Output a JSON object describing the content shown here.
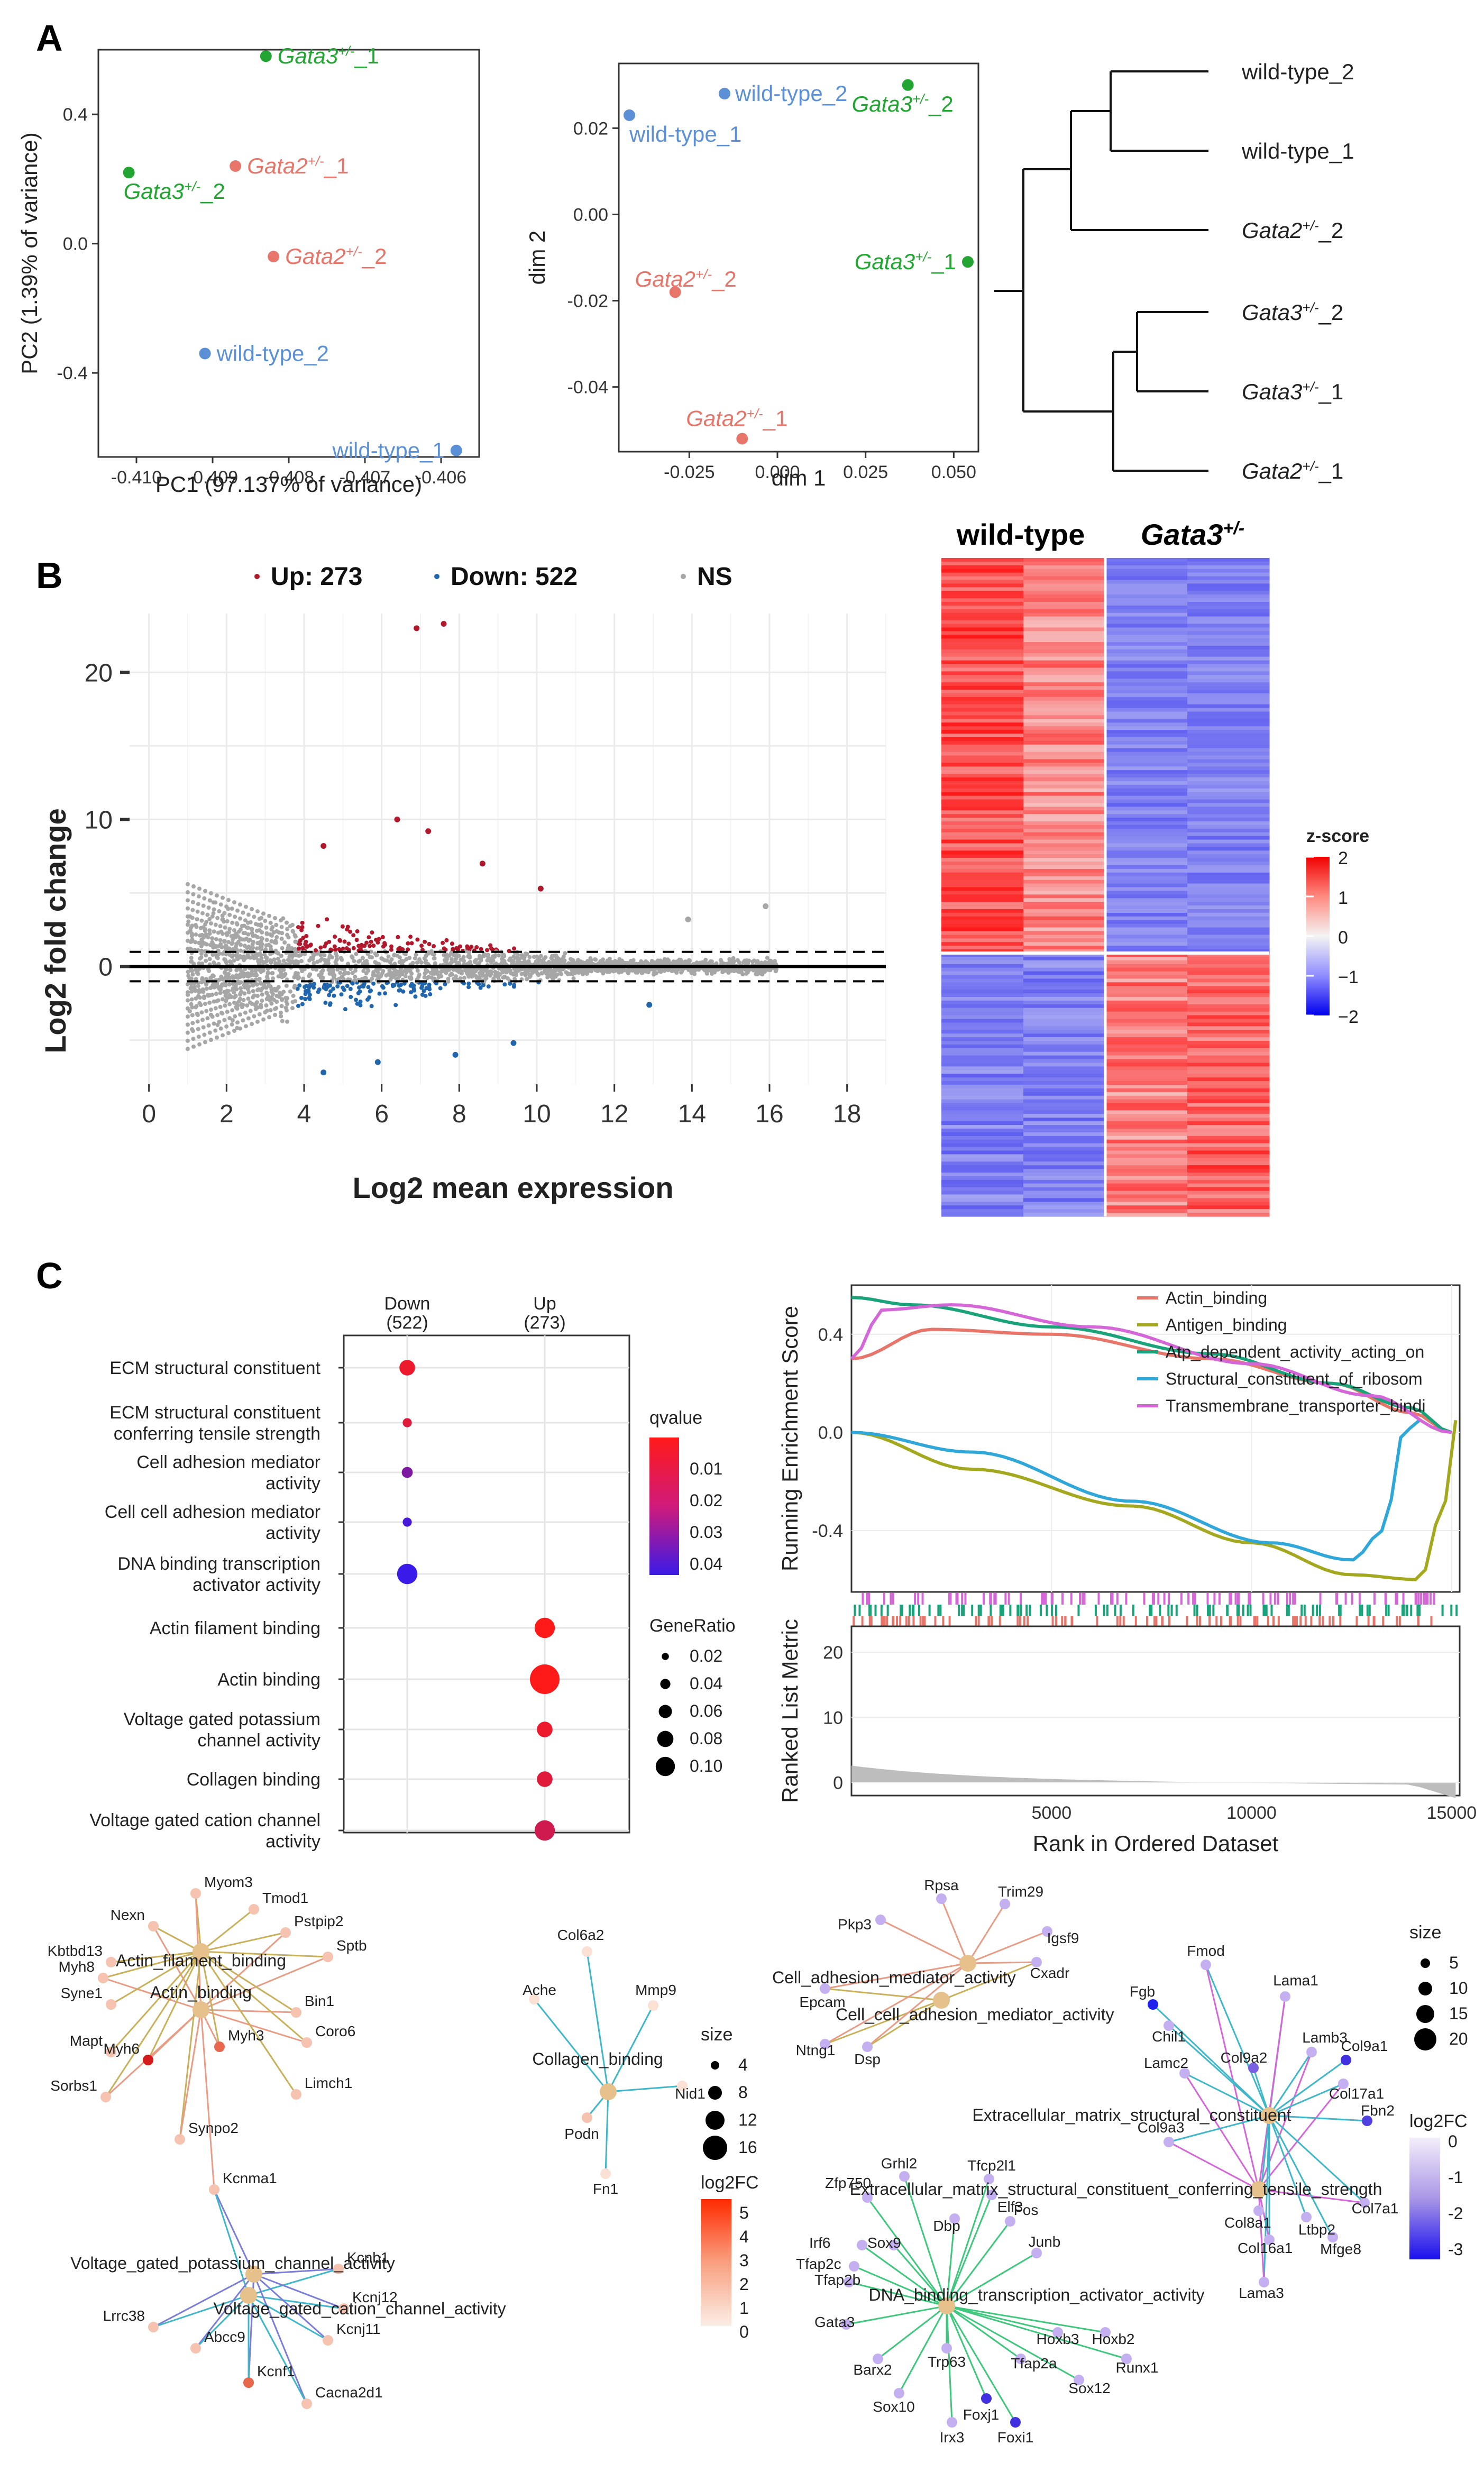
{
  "panel_labels": {
    "a": "A",
    "b": "B",
    "c": "C"
  },
  "colors": {
    "wildtype": "#5b8fd6",
    "gata3": "#22a532",
    "gata2": "#e8756a",
    "up": "#b2182b",
    "down": "#2166ac",
    "ns": "#a6a6a6"
  },
  "chart_data": [
    {
      "id": "pca",
      "type": "scatter",
      "xlabel": "PC1 (97.137% of variance)",
      "ylabel": "PC2 (1.39% of variance)",
      "xlim": [
        -0.4105,
        -0.4055
      ],
      "ylim": [
        -0.66,
        0.6
      ],
      "xticks": [
        "-0.410",
        "-0.409",
        "-0.408",
        "-0.407",
        "-0.406"
      ],
      "xtick_values": [
        -0.41,
        -0.409,
        -0.408,
        -0.407,
        -0.406
      ],
      "yticks": [
        "0.4",
        "0.0",
        "-0.4"
      ],
      "ytick_values": [
        0.4,
        0.0,
        -0.4
      ],
      "points": [
        {
          "label": "Gata3+/-_1",
          "group": "gata3",
          "x": -0.4083,
          "y": 0.58
        },
        {
          "label": "Gata3+/-_2",
          "group": "gata3",
          "x": -0.4101,
          "y": 0.22
        },
        {
          "label": "Gata2+/-_1",
          "group": "gata2",
          "x": -0.4087,
          "y": 0.24
        },
        {
          "label": "Gata2+/-_2",
          "group": "gata2",
          "x": -0.4082,
          "y": -0.04
        },
        {
          "label": "wild-type_2",
          "group": "wildtype",
          "x": -0.4091,
          "y": -0.34
        },
        {
          "label": "wild-type_1",
          "group": "wildtype",
          "x": -0.4058,
          "y": -0.64
        }
      ]
    },
    {
      "id": "mds",
      "type": "scatter",
      "xlabel": "dim 1",
      "ylabel": "dim 2",
      "xlim": [
        -0.045,
        0.057
      ],
      "ylim": [
        -0.055,
        0.035
      ],
      "xticks": [
        "-0.025",
        "0.000",
        "0.025",
        "0.050"
      ],
      "xtick_values": [
        -0.025,
        0.0,
        0.025,
        0.05
      ],
      "yticks": [
        "0.02",
        "0.00",
        "-0.02",
        "-0.04"
      ],
      "ytick_values": [
        0.02,
        0.0,
        -0.02,
        -0.04
      ],
      "points": [
        {
          "label": "wild-type_2",
          "group": "wildtype",
          "x": -0.015,
          "y": 0.028
        },
        {
          "label": "wild-type_1",
          "group": "wildtype",
          "x": -0.042,
          "y": 0.023
        },
        {
          "label": "Gata3+/-_2",
          "group": "gata3",
          "x": 0.037,
          "y": 0.03
        },
        {
          "label": "Gata3+/-_1",
          "group": "gata3",
          "x": 0.054,
          "y": -0.011
        },
        {
          "label": "Gata2+/-_2",
          "group": "gata2",
          "x": -0.029,
          "y": -0.018
        },
        {
          "label": "Gata2+/-_1",
          "group": "gata2",
          "x": -0.01,
          "y": -0.052
        }
      ]
    },
    {
      "id": "dendrogram",
      "type": "dendrogram",
      "leaves": [
        "wild-type_2",
        "wild-type_1",
        "Gata2+/-_2",
        "Gata3+/-_2",
        "Gata3+/-_1",
        "Gata2+/-_1"
      ]
    },
    {
      "id": "ma",
      "type": "scatter",
      "xlabel": "Log2 mean expression",
      "ylabel": "Log2 fold change",
      "xlim": [
        -0.5,
        19
      ],
      "ylim": [
        -8,
        24
      ],
      "xticks": [
        "0",
        "2",
        "4",
        "6",
        "8",
        "10",
        "12",
        "14",
        "16",
        "18"
      ],
      "xtick_values": [
        0,
        2,
        4,
        6,
        8,
        10,
        12,
        14,
        16,
        18
      ],
      "yticks": [
        "0",
        "10",
        "20"
      ],
      "ytick_values": [
        0,
        10,
        20
      ],
      "legend": [
        {
          "label": "Up: 273",
          "group": "up"
        },
        {
          "label": "Down: 522",
          "group": "down"
        },
        {
          "label": "NS",
          "group": "ns"
        }
      ],
      "thresholds": [
        1,
        -1
      ],
      "outliers": [
        {
          "x": 6.9,
          "y": 23.0,
          "group": "up"
        },
        {
          "x": 7.6,
          "y": 23.3,
          "group": "up"
        },
        {
          "x": 6.4,
          "y": 10.0,
          "group": "up"
        },
        {
          "x": 7.2,
          "y": 9.2,
          "group": "up"
        },
        {
          "x": 4.5,
          "y": 8.2,
          "group": "up"
        },
        {
          "x": 10.1,
          "y": 5.3,
          "group": "up"
        },
        {
          "x": 8.6,
          "y": 7.0,
          "group": "up"
        },
        {
          "x": 13.9,
          "y": 3.2,
          "group": "ns"
        },
        {
          "x": 15.9,
          "y": 4.1,
          "group": "ns"
        },
        {
          "x": 4.5,
          "y": -7.2,
          "group": "down"
        },
        {
          "x": 5.9,
          "y": -6.5,
          "group": "down"
        },
        {
          "x": 7.9,
          "y": -6.0,
          "group": "down"
        },
        {
          "x": 9.4,
          "y": -5.2,
          "group": "down"
        },
        {
          "x": 12.9,
          "y": -2.6,
          "group": "down"
        }
      ]
    },
    {
      "id": "heatmap",
      "type": "heatmap",
      "group_labels": [
        "wild-type",
        "Gata3+/-"
      ],
      "legend_title": "z-score",
      "scale_ticks": [
        "2",
        "1",
        "0",
        "−1",
        "−2"
      ],
      "scale_values": [
        2,
        1,
        0,
        -1,
        -2
      ],
      "columns": 4,
      "rows_up_fraction": 0.6
    },
    {
      "id": "dotplot",
      "type": "scatter",
      "columns": [
        {
          "name": "Down",
          "n": "(522)"
        },
        {
          "name": "Up",
          "n": "(273)"
        }
      ],
      "terms": [
        {
          "label": [
            "ECM structural constituent"
          ],
          "col": 0,
          "qvalue": 0.005,
          "ratio": 0.04
        },
        {
          "label": [
            "ECM structural constituent",
            "conferring tensile strength"
          ],
          "col": 0,
          "qvalue": 0.008,
          "ratio": 0.012
        },
        {
          "label": [
            "Cell adhesion mediator",
            "activity"
          ],
          "col": 0,
          "qvalue": 0.03,
          "ratio": 0.02
        },
        {
          "label": [
            "Cell cell adhesion mediator",
            "activity"
          ],
          "col": 0,
          "qvalue": 0.042,
          "ratio": 0.012
        },
        {
          "label": [
            "DNA binding transcription",
            "activator activity"
          ],
          "col": 0,
          "qvalue": 0.045,
          "ratio": 0.06
        },
        {
          "label": [
            "Actin filament binding"
          ],
          "col": 1,
          "qvalue": 0.001,
          "ratio": 0.06
        },
        {
          "label": [
            "Actin binding"
          ],
          "col": 1,
          "qvalue": 0.001,
          "ratio": 0.1
        },
        {
          "label": [
            "Voltage gated potassium",
            "channel activity"
          ],
          "col": 1,
          "qvalue": 0.005,
          "ratio": 0.04
        },
        {
          "label": [
            "Collagen binding"
          ],
          "col": 1,
          "qvalue": 0.008,
          "ratio": 0.04
        },
        {
          "label": [
            "Voltage gated cation channel",
            "activity"
          ],
          "col": 1,
          "qvalue": 0.012,
          "ratio": 0.06
        }
      ],
      "qvalue_title": "qvalue",
      "qvalue_ticks": [
        "0.01",
        "0.02",
        "0.03",
        "0.04"
      ],
      "generatio_title": "GeneRatio",
      "generatio_ticks": [
        "0.02",
        "0.04",
        "0.06",
        "0.08",
        "0.10"
      ],
      "generatio_values": [
        0.02,
        0.04,
        0.06,
        0.08,
        0.1
      ]
    },
    {
      "id": "gsea",
      "type": "line",
      "ylabel_top": "Running Enrichment Score",
      "ylabel_bottom": "Ranked List Metric",
      "xlabel": "Rank in Ordered Dataset",
      "xlim": [
        0,
        15200
      ],
      "ylim_top": [
        -0.65,
        0.6
      ],
      "ylim_bottom": [
        -2,
        24
      ],
      "xticks": [
        "5000",
        "10000",
        "15000"
      ],
      "xtick_values": [
        5000,
        10000,
        15000
      ],
      "yticks_top": [
        "0.4",
        "0.0",
        "-0.4"
      ],
      "ytick_values_top": [
        0.4,
        0.0,
        -0.4
      ],
      "yticks_bottom": [
        "20",
        "10",
        "0"
      ],
      "ytick_values_bottom": [
        20,
        10,
        0
      ],
      "series": [
        {
          "name": "Actin_binding",
          "color": "#e8756a",
          "x": [
            0,
            2000,
            5000,
            9000,
            12000,
            14000,
            15000
          ],
          "y": [
            0.3,
            0.42,
            0.4,
            0.3,
            0.2,
            0.08,
            0.0
          ]
        },
        {
          "name": "Antigen_binding",
          "color": "#a3a81e",
          "x": [
            0,
            3000,
            7000,
            10000,
            12500,
            14200,
            14800,
            15100
          ],
          "y": [
            0.0,
            -0.15,
            -0.3,
            -0.45,
            -0.58,
            -0.6,
            -0.3,
            0.05
          ]
        },
        {
          "name": "Atp_dependent_activity_acting_on",
          "color": "#1aa37a",
          "x": [
            0,
            1500,
            5000,
            9000,
            12000,
            14000,
            15000
          ],
          "y": [
            0.55,
            0.52,
            0.43,
            0.32,
            0.2,
            0.1,
            0.0
          ]
        },
        {
          "name": "Structural_constituent_of_ribosom",
          "color": "#2fa7d8",
          "x": [
            0,
            3000,
            7000,
            10500,
            12500,
            13300,
            13800,
            14200
          ],
          "y": [
            0.0,
            -0.08,
            -0.28,
            -0.45,
            -0.52,
            -0.4,
            0.0,
            0.05
          ]
        },
        {
          "name": "Transmembrane_transporter_bindi",
          "color": "#d566d8",
          "x": [
            0,
            800,
            2500,
            6000,
            10000,
            13000,
            15000
          ],
          "y": [
            0.3,
            0.5,
            0.52,
            0.43,
            0.28,
            0.15,
            0.0
          ]
        }
      ]
    }
  ],
  "networks": {
    "left": {
      "hubs": [
        "Actin_filament_binding",
        "Actin_binding",
        "Voltage_gated_potassium_channel_activity",
        "Voltage_gated_cation_channel_activity"
      ],
      "genes": [
        "Myom3",
        "Tmod1",
        "Nexn",
        "Pstpip2",
        "Kbtbd13",
        "Sptb",
        "Myh8",
        "Syne1",
        "Bin1",
        "Coro6",
        "Mapt",
        "Myh6",
        "Myh3",
        "Limch1",
        "Sorbs1",
        "Synpo2",
        "Kcnma1",
        "Kcnb1",
        "Kcnj12",
        "Lrrc38",
        "Kcnj11",
        "Abcc9",
        "Kcnf1",
        "Cacna2d1"
      ]
    },
    "middle": {
      "hubs": [
        "Collagen_binding"
      ],
      "genes": [
        "Col6a2",
        "Ache",
        "Mmp9",
        "Nid1",
        "Podn",
        "Fn1"
      ]
    },
    "right_top": {
      "hubs": [
        "Cell_adhesion_mediator_activity",
        "Cell_cell_adhesion_mediator_activity"
      ],
      "genes": [
        "Rpsa",
        "Trim29",
        "Pkp3",
        "Igsf9",
        "Cxadr",
        "Epcam",
        "Ntng1",
        "Dsp"
      ]
    },
    "right_bottom": {
      "hubs": [
        "Extracellular_matrix_structural_constituent",
        "Extracellular_matrix_structural_constituent_conferring_tensile_strength",
        "DNA_binding_transcription_activator_activity"
      ],
      "genes": [
        "Fmod",
        "Fgb",
        "Lama1",
        "Chil1",
        "Lamb3",
        "Col9a1",
        "Lamc2",
        "Col9a2",
        "Col17a1",
        "Fbn2",
        "Col9a3",
        "Col8a1",
        "Col7a1",
        "Ltbp2",
        "Col16a1",
        "Mfge8",
        "Lama3",
        "Grhl2",
        "Tfcp2l1",
        "Zfp750",
        "Elf3",
        "Dbp",
        "Fos",
        "Irf6",
        "Sox9",
        "Junb",
        "Tfap2c",
        "Tfap2b",
        "Gata3",
        "Hoxb3",
        "Hoxb2",
        "Runx1",
        "Barx2",
        "Trp63",
        "Tfap2a",
        "Sox12",
        "Sox10",
        "Foxj1",
        "Irx3",
        "Foxi1"
      ]
    },
    "size_legend_mid": {
      "title": "size",
      "values": [
        "4",
        "8",
        "12",
        "16"
      ]
    },
    "fc_legend_mid": {
      "title": "log2FC",
      "values": [
        "5",
        "4",
        "3",
        "2",
        "1",
        "0"
      ]
    },
    "size_legend_right": {
      "title": "size",
      "values": [
        "5",
        "10",
        "15",
        "20"
      ]
    },
    "fc_legend_right": {
      "title": "log2FC",
      "values": [
        "0",
        "-1",
        "-2",
        "-3"
      ]
    }
  }
}
